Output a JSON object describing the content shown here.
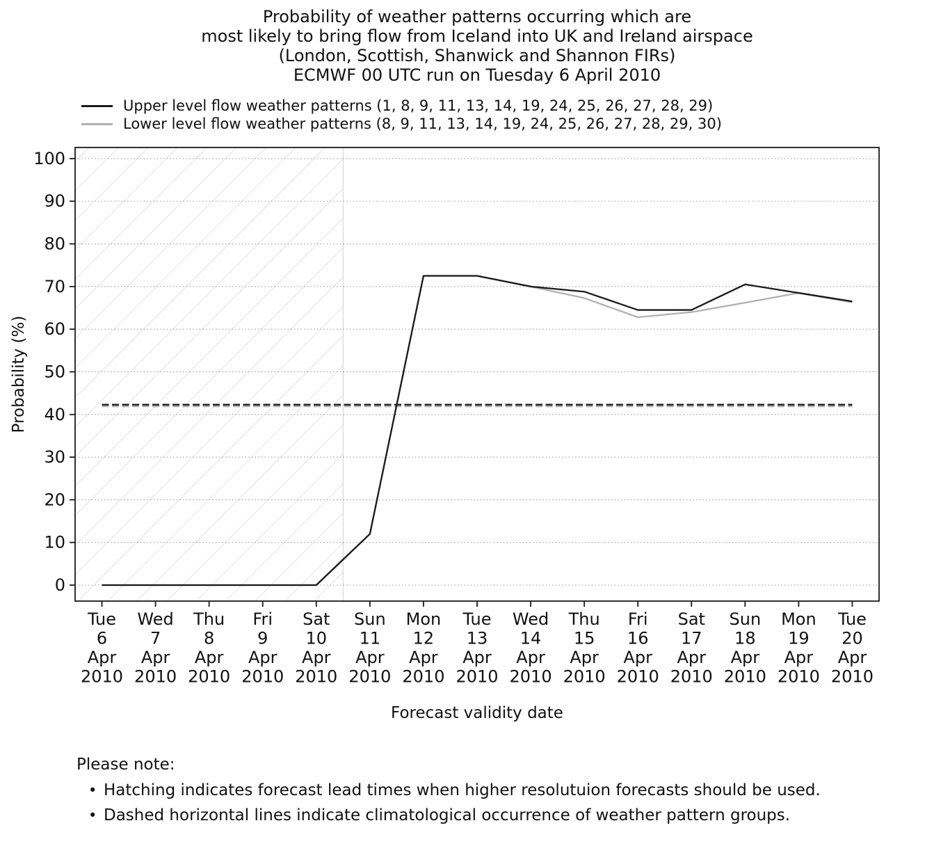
{
  "title": {
    "lines": [
      "Probability of weather patterns occurring which are",
      "most likely to bring flow from Iceland into UK and Ireland airspace",
      "(London, Scottish, Shanwick and Shannon FIRs)",
      "ECMWF 00 UTC run on Tuesday 6 April 2010"
    ]
  },
  "legend": {
    "items": [
      {
        "label": "Upper level flow weather patterns (1, 8, 9, 11, 13, 14, 19, 24, 25, 26, 27, 28, 29)",
        "color": "#1a1a1a"
      },
      {
        "label": "Lower level flow weather patterns (8, 9, 11, 13, 14, 19, 24, 25, 26, 27, 28, 29, 30)",
        "color": "#b0b0b0"
      }
    ]
  },
  "chart_data": {
    "type": "line",
    "title": "Probability of weather patterns occurring which are most likely to bring flow from Iceland into UK and Ireland airspace (London, Scottish, Shanwick and Shannon FIRs) ECMWF 00 UTC run on Tuesday 6 April 2010",
    "xlabel": "Forecast validity date",
    "ylabel": "Probability (%)",
    "x_tick_labels": [
      [
        "Tue",
        "6",
        "Apr",
        "2010"
      ],
      [
        "Wed",
        "7",
        "Apr",
        "2010"
      ],
      [
        "Thu",
        "8",
        "Apr",
        "2010"
      ],
      [
        "Fri",
        "9",
        "Apr",
        "2010"
      ],
      [
        "Sat",
        "10",
        "Apr",
        "2010"
      ],
      [
        "Sun",
        "11",
        "Apr",
        "2010"
      ],
      [
        "Mon",
        "12",
        "Apr",
        "2010"
      ],
      [
        "Tue",
        "13",
        "Apr",
        "2010"
      ],
      [
        "Wed",
        "14",
        "Apr",
        "2010"
      ],
      [
        "Thu",
        "15",
        "Apr",
        "2010"
      ],
      [
        "Fri",
        "16",
        "Apr",
        "2010"
      ],
      [
        "Sat",
        "17",
        "Apr",
        "2010"
      ],
      [
        "Sun",
        "18",
        "Apr",
        "2010"
      ],
      [
        "Mon",
        "19",
        "Apr",
        "2010"
      ],
      [
        "Tue",
        "20",
        "Apr",
        "2010"
      ]
    ],
    "series": [
      {
        "name": "Upper level flow weather patterns",
        "color": "#1a1a1a",
        "values": [
          0,
          0,
          0,
          0,
          0,
          12,
          72.5,
          72.5,
          70,
          68.8,
          64.5,
          64.5,
          70.5,
          68.5,
          66.5
        ]
      },
      {
        "name": "Lower level flow weather patterns",
        "color": "#b0b0b0",
        "values": [
          0,
          0,
          0,
          0,
          0,
          12,
          72.5,
          72.5,
          70,
          67.3,
          62.8,
          64,
          66.2,
          68.5,
          66.3
        ]
      }
    ],
    "climatology_lines": [
      {
        "name": "Upper level climatological occurrence",
        "color": "#1a1a1a",
        "value": 42.3
      },
      {
        "name": "Lower level climatological occurrence",
        "color": "#b0b0b0",
        "value": 41.9
      }
    ],
    "hatched_region": {
      "start_index": -0.5,
      "end_index": 4.5,
      "hatch_color": "#d9d9d9"
    },
    "y_ticks": [
      0,
      10,
      20,
      30,
      40,
      50,
      60,
      70,
      80,
      90,
      100
    ],
    "ylim": [
      -3.75,
      102.6
    ],
    "grid": "horizontal dotted",
    "legend_position": "upper left, above axes"
  },
  "notes": {
    "heading": "Please note:",
    "bullets": [
      "Hatching indicates forecast lead times when higher resolutuion forecasts should be used.",
      "Dashed horizontal lines indicate climatological occurrence of weather pattern groups."
    ]
  }
}
